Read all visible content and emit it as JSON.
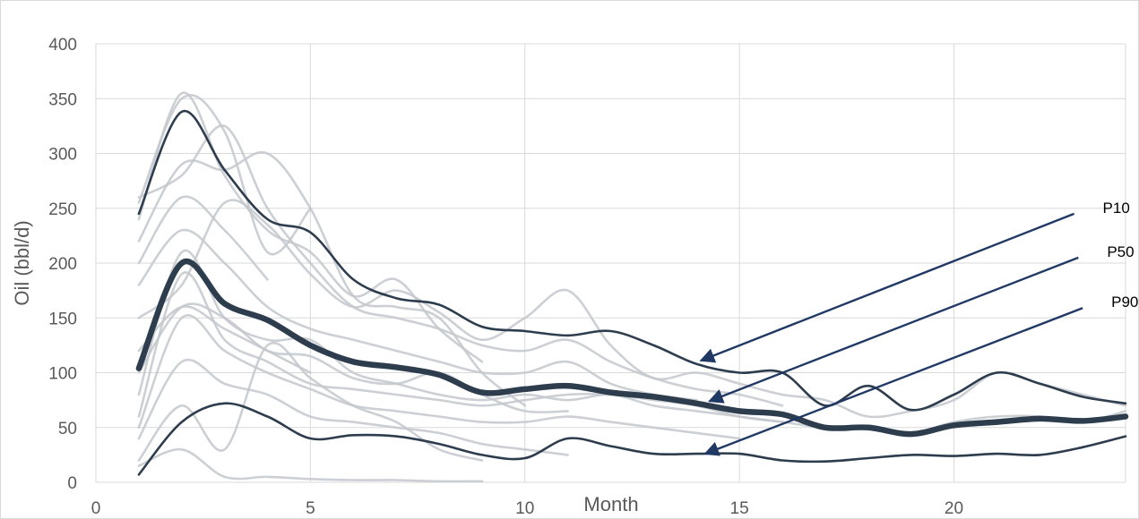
{
  "chart_data": {
    "type": "line",
    "xlabel": "Month",
    "ylabel": "Oil (bbl/d)",
    "xlim": [
      0,
      24
    ],
    "ylim": [
      0,
      400
    ],
    "x_ticks": [
      "0",
      "5",
      "10",
      "15",
      "20"
    ],
    "y_ticks": [
      "0",
      "50",
      "100",
      "150",
      "200",
      "250",
      "300",
      "350",
      "400"
    ],
    "grid": true,
    "colors": {
      "wells": "#c3c8cc",
      "percentiles": "#2e3d4e",
      "arrows": "#1f3864"
    },
    "wells": [
      {
        "x": [
          1,
          2,
          3,
          4,
          5
        ],
        "values": [
          255,
          350,
          320,
          210,
          250
        ]
      },
      {
        "x": [
          1,
          2,
          3,
          4,
          5,
          6,
          7,
          8,
          9
        ],
        "values": [
          240,
          355,
          280,
          230,
          210,
          170,
          185,
          140,
          110
        ]
      },
      {
        "x": [
          1,
          2,
          3,
          4,
          5,
          6,
          7,
          8,
          9,
          10
        ],
        "values": [
          220,
          290,
          285,
          300,
          250,
          170,
          160,
          150,
          100,
          70
        ]
      },
      {
        "x": [
          1,
          2,
          3,
          4,
          5,
          6,
          7,
          8,
          9,
          10,
          11,
          12,
          13,
          14,
          15,
          16
        ],
        "values": [
          260,
          280,
          325,
          250,
          200,
          160,
          150,
          140,
          125,
          120,
          130,
          110,
          95,
          85,
          80,
          70
        ]
      },
      {
        "x": [
          1,
          2,
          3,
          4,
          5,
          6,
          7,
          8,
          9,
          10,
          11,
          12,
          13,
          14,
          15,
          16,
          17,
          18,
          19,
          20,
          21,
          22,
          23,
          24
        ],
        "values": [
          150,
          180,
          255,
          235,
          190,
          160,
          175,
          155,
          130,
          150,
          175,
          125,
          95,
          100,
          90,
          80,
          75,
          60,
          65,
          75,
          100,
          90,
          80,
          70
        ]
      },
      {
        "x": [
          1,
          2,
          3,
          4,
          5,
          6,
          7,
          8,
          9,
          10,
          11,
          12,
          13,
          14
        ],
        "values": [
          180,
          230,
          200,
          160,
          140,
          130,
          120,
          110,
          100,
          100,
          110,
          90,
          80,
          75
        ]
      },
      {
        "x": [
          1,
          2,
          3,
          4,
          5,
          6,
          7,
          8,
          9,
          10,
          11
        ],
        "values": [
          100,
          160,
          150,
          120,
          115,
          95,
          90,
          100,
          80,
          65,
          65
        ]
      },
      {
        "x": [
          1,
          2,
          3,
          4,
          5,
          6,
          7,
          8,
          9,
          10,
          11,
          12,
          13,
          14,
          15,
          16,
          17,
          18,
          19,
          20,
          21,
          22,
          23,
          24
        ],
        "values": [
          80,
          210,
          150,
          130,
          130,
          100,
          90,
          80,
          75,
          80,
          75,
          80,
          70,
          65,
          60,
          55,
          50,
          50,
          45,
          55,
          60,
          60,
          55,
          65
        ]
      },
      {
        "x": [
          1,
          2,
          3,
          4,
          5,
          6,
          7,
          8,
          9,
          10,
          11,
          12,
          13,
          14,
          15,
          16
        ],
        "values": [
          60,
          190,
          130,
          110,
          90,
          85,
          80,
          75,
          70,
          75,
          80,
          80,
          75,
          70,
          60,
          55
        ]
      },
      {
        "x": [
          1,
          2,
          3,
          4,
          5,
          6,
          7,
          8,
          9,
          10,
          11,
          12,
          13,
          14,
          15
        ],
        "values": [
          50,
          150,
          120,
          100,
          85,
          70,
          65,
          60,
          55,
          55,
          60,
          55,
          50,
          45,
          40
        ]
      },
      {
        "x": [
          1,
          2,
          3,
          4,
          5,
          6,
          7,
          8,
          9,
          10,
          11
        ],
        "values": [
          40,
          110,
          90,
          80,
          60,
          55,
          50,
          45,
          35,
          30,
          25
        ]
      },
      {
        "x": [
          1,
          2,
          3,
          4,
          5,
          6,
          7,
          8,
          9
        ],
        "values": [
          20,
          70,
          30,
          125,
          95,
          70,
          55,
          30,
          20
        ]
      },
      {
        "x": [
          1,
          2,
          3,
          4,
          5,
          6,
          7,
          8,
          9
        ],
        "values": [
          15,
          30,
          5,
          5,
          3,
          2,
          2,
          1,
          1
        ]
      },
      {
        "x": [
          1,
          2,
          3,
          4,
          5
        ],
        "values": [
          120,
          160,
          140,
          120,
          100
        ]
      },
      {
        "x": [
          1,
          2,
          3,
          4
        ],
        "values": [
          200,
          260,
          230,
          185
        ]
      }
    ],
    "series": [
      {
        "name": "P10",
        "x": [
          1,
          2,
          3,
          4,
          5,
          6,
          7,
          8,
          9,
          10,
          11,
          12,
          13,
          14,
          15,
          16,
          17,
          18,
          19,
          20,
          21,
          22,
          23,
          24
        ],
        "values": [
          245,
          338,
          285,
          240,
          228,
          185,
          168,
          162,
          142,
          138,
          134,
          138,
          125,
          108,
          100,
          100,
          70,
          88,
          66,
          80,
          100,
          90,
          78,
          72
        ]
      },
      {
        "name": "P50",
        "x": [
          1,
          2,
          3,
          4,
          5,
          6,
          7,
          8,
          9,
          10,
          11,
          12,
          13,
          14,
          15,
          16,
          17,
          18,
          19,
          20,
          21,
          22,
          23,
          24
        ],
        "values": [
          104,
          200,
          163,
          148,
          125,
          110,
          105,
          98,
          82,
          85,
          88,
          82,
          78,
          72,
          65,
          62,
          50,
          50,
          44,
          52,
          55,
          58,
          56,
          60
        ]
      },
      {
        "name": "P90",
        "x": [
          1,
          2,
          3,
          4,
          5,
          6,
          7,
          8,
          9,
          10,
          11,
          12,
          13,
          14,
          15,
          16,
          17,
          18,
          19,
          20,
          21,
          22,
          23,
          24
        ],
        "values": [
          7,
          55,
          72,
          60,
          40,
          43,
          42,
          35,
          25,
          22,
          40,
          33,
          26,
          26,
          26,
          20,
          19,
          22,
          25,
          24,
          26,
          25,
          32,
          42
        ]
      }
    ],
    "annotations": [
      {
        "text": "P10",
        "from": [
          22.8,
          245
        ],
        "to": [
          14.1,
          111
        ]
      },
      {
        "text": "P50",
        "from": [
          22.9,
          205
        ],
        "to": [
          14.3,
          74
        ]
      },
      {
        "text": "P90",
        "from": [
          23.0,
          159
        ],
        "to": [
          14.2,
          26
        ]
      }
    ]
  }
}
